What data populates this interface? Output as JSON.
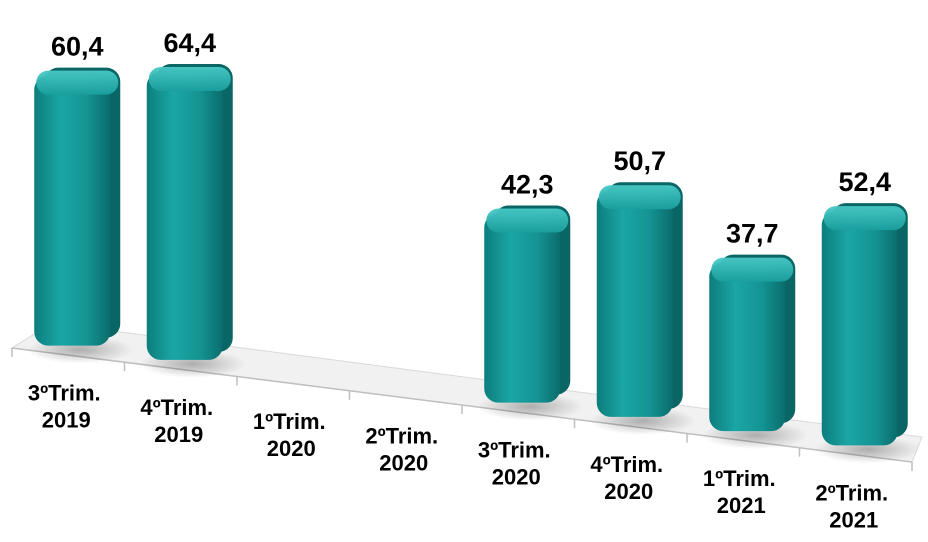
{
  "chart_data": {
    "type": "bar",
    "title": "",
    "xlabel": "",
    "ylabel": "",
    "categories": [
      [
        "3ºTrim.",
        "2019"
      ],
      [
        "4ºTrim.",
        "2019"
      ],
      [
        "1ºTrim.",
        "2020"
      ],
      [
        "2ºTrim.",
        "2020"
      ],
      [
        "3ºTrim.",
        "2020"
      ],
      [
        "4ºTrim.",
        "2020"
      ],
      [
        "1ºTrim.",
        "2021"
      ],
      [
        "2ºTrim.",
        "2021"
      ]
    ],
    "values": [
      60.4,
      64.4,
      null,
      null,
      42.3,
      50.7,
      37.7,
      52.4
    ],
    "value_labels": [
      "60,4",
      "64,4",
      "",
      "",
      "42,3",
      "50,7",
      "37,7",
      "52,4"
    ],
    "ylim": [
      0,
      70
    ],
    "grid": false,
    "legend": "none",
    "style": "3d-perspective",
    "colors": {
      "bar_front": "#169a9a",
      "bar_side": "#0b6f6f",
      "bar_top": "#2cb8b6"
    }
  }
}
